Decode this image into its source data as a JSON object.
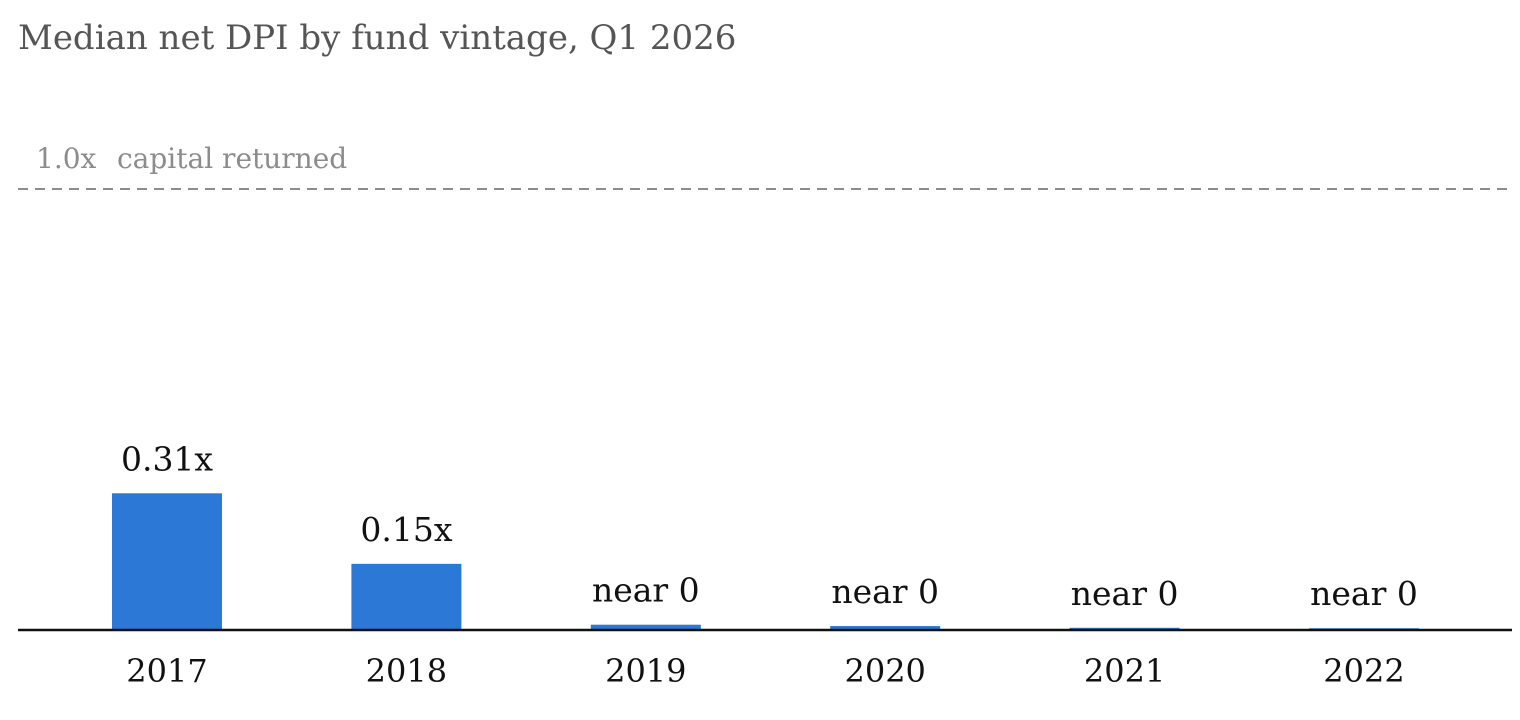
{
  "chart_data": {
    "type": "bar",
    "title": "Median net DPI by fund vintage, Q1 2026",
    "xlabel": "",
    "ylabel": "",
    "categories": [
      "2017",
      "2018",
      "2019",
      "2020",
      "2021",
      "2022"
    ],
    "values": [
      0.31,
      0.15,
      0.012,
      0.009,
      0.005,
      0.004
    ],
    "data_labels": [
      "0.31x",
      "0.15x",
      "near 0",
      "near 0",
      "near 0",
      "near 0"
    ],
    "ylim": [
      0,
      1.0
    ],
    "grid": false,
    "reference_line": {
      "value": 1.0,
      "value_label": "1.0x",
      "text": "capital returned",
      "color": "#8c8c8c"
    },
    "colors": {
      "bar": "#2b78d6",
      "axis": "#111111"
    }
  }
}
